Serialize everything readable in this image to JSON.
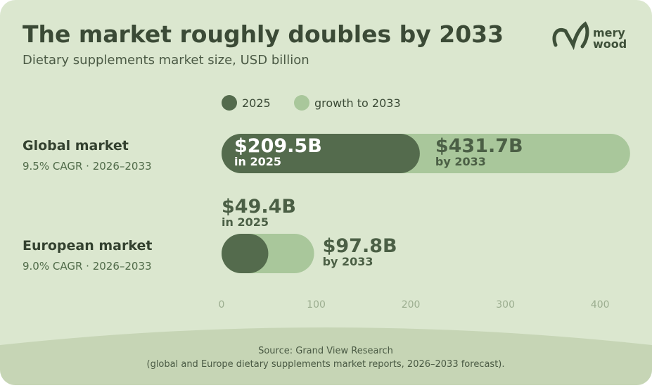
{
  "chart_data": {
    "type": "bar",
    "title": "The market roughly doubles by 2033",
    "subtitle": "Dietary supplements market size, USD billion",
    "brand": [
      "mery",
      "wood"
    ],
    "categories": [
      "Global market",
      "European market"
    ],
    "category_notes": [
      "9.5% CAGR · 2026–2033",
      "9.0% CAGR · 2026–2033"
    ],
    "series": [
      {
        "name": "2025",
        "color": "#546b4d",
        "note": "in 2025",
        "values": [
          209.5,
          49.4
        ],
        "value_labels": [
          "$209.5B",
          "$49.4B"
        ]
      },
      {
        "name": "growth to 2033",
        "color": "#a9c79b",
        "note": "by 2033",
        "values": [
          431.7,
          97.8
        ],
        "value_labels": [
          "$431.7B",
          "$97.8B"
        ]
      }
    ],
    "xlim": [
      0,
      440
    ],
    "xticks": [
      0,
      100,
      200,
      300,
      400
    ],
    "grid": false,
    "legend": "top",
    "source": [
      "Source: Grand View Research",
      "(global and Europe dietary supplements market reports, 2026–2033 forecast)."
    ]
  }
}
